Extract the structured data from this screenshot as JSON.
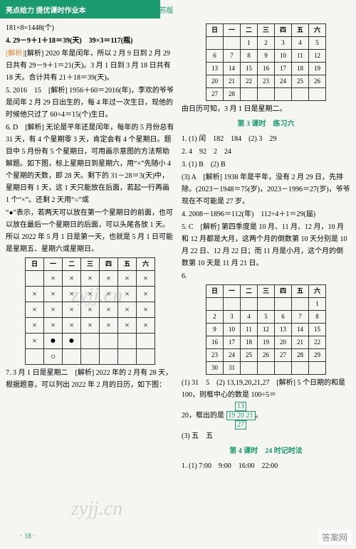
{
  "header": {
    "left": "亮点给力  提优课时作业本",
    "right": "数学三年级  下册  江苏版"
  },
  "left": {
    "p1": "181×8=1448(个)",
    "p2a": "4. 29－9＋1＋18＝39(天)　39×3＝117(瓶)",
    "p2b": "[解析] 2020 年是闰年，所以 2 月 9 日到 2 月 29 日共有 29－9＋1＝21(天)。3 月 1 日到 3 月 18 日共有 18 天。合计共有 21＋18＝39(天)。",
    "p3a": "5. 2016　15　[解析] 1956＋60＝2016(年)，李欢的爷爷是闰年 2 月 29 日出生的，每 4 年过一次生日，现他的时候他只过了 60÷4＝15(个)生日。",
    "p4a": "6. D　[解析] 无论是平年还是闰年，每年的 5 月份总有 31 天，有 4 个星期零 3 天，肯定会有 4 个星期日。题目中 5 月份有 5 个星期日，可用画示意图的方法帮助解题。如下图，标上星期日到星期六，用“×”先随小 4 个星期的天数，即 28 天。剩下的 31－28＝3(天)中，星期日有 1 天，这 1 天只能放在后面，若起一行再画 1 个“×”。还剩 2 天用“○”或",
    "p4b": "“●”表示，若两天可以放在第一个星期日的前面，也可以放在最后一个星期日的后面，可以头尾各放 1 天。所以 2022 年 5 月 1 日是第一天，也就是 5 月 1 日可能是星期五、星期六或星期日。",
    "p5a": "7. 3 月 1 日是星期二　[解析] 2022 年的 2 月有 28 天，根据题意，可以列出 2022 年 2 月的日历，如下图：",
    "markHeaders": [
      "日",
      "一",
      "二",
      "三",
      "四",
      "五",
      "六"
    ],
    "markGrid": [
      [
        "",
        "×",
        "×",
        "×",
        "×",
        "×",
        "×"
      ],
      [
        "×",
        "×",
        "×",
        "×",
        "×",
        "×",
        "×"
      ],
      [
        "×",
        "×",
        "×",
        "×",
        "×",
        "×",
        "×"
      ],
      [
        "×",
        "×",
        "×",
        "×",
        "×",
        "×",
        "×"
      ],
      [
        "×",
        "●",
        "●",
        "",
        "",
        "",
        ""
      ],
      [
        "",
        "○",
        "",
        "",
        "",
        "",
        ""
      ]
    ]
  },
  "right": {
    "calHeaders": [
      "日",
      "一",
      "二",
      "三",
      "四",
      "五",
      "六"
    ],
    "calRows": [
      [
        "",
        "",
        "1",
        "2",
        "3",
        "4",
        "5"
      ],
      [
        "6",
        "7",
        "8",
        "9",
        "10",
        "11",
        "12"
      ],
      [
        "13",
        "14",
        "15",
        "16",
        "17",
        "18",
        "19"
      ],
      [
        "20",
        "21",
        "22",
        "23",
        "24",
        "25",
        "26"
      ],
      [
        "27",
        "28",
        "",
        "",
        "",
        "",
        ""
      ]
    ],
    "calNote": "由日历可知，3 月 1 日是星期二。",
    "sec3": "第 3 课时　练习六",
    "r1": "1. (1) 闰　182　184　(2) 3　29",
    "r2": "2. 4　92　2　24",
    "r3a": "3. (1) B　(2) B",
    "r3b": "(3) A　[解析] 1938 年是平年，没有 2 月 29 日，先排除。(2023－1948＝75(岁)，2023－1996＝27(岁)，爷爷现在不可能是 27 岁。",
    "r4": "4. 2008－1896＝112(年)　112÷4＋1＝29(届)",
    "r5": "5. C　[解析] 第四季度是 10 月、11 月、12 月，10 月和 12 月都是大月，这两个月的倒数第 10 天分别是 10 月 22 日、12 月 22 日；而 11 月是小月，这个月的倒数第 10 天是 11 月 21 日。",
    "r6head": "6.",
    "cal2Rows": [
      [
        "",
        "",
        "",
        "",
        "",
        "",
        "1"
      ],
      [
        "2",
        "3",
        "4",
        "5",
        "6",
        "7",
        "8"
      ],
      [
        "9",
        "10",
        "11",
        "12",
        "13",
        "14",
        "15"
      ],
      [
        "16",
        "17",
        "18",
        "19",
        "20",
        "21",
        "22"
      ],
      [
        "23",
        "24",
        "25",
        "26",
        "27",
        "28",
        "29"
      ],
      [
        "30",
        "31",
        "",
        "",
        "",
        "",
        ""
      ]
    ],
    "r6a": "(1) 31　5　(2) 13,19,20,21,27　[解析] 5 个日期的和是 100，则框中心的数是 100÷5＝",
    "r6b_pre": "20，框出的是",
    "boxTop": "13",
    "boxRow": "19 20 21",
    "boxBot": "27",
    "r6c": "(3) 五　五",
    "sec4": "第 4 课时　24 时记时法",
    "r7": "1. (1) 7:00　9:00　16:00　22:00"
  },
  "page": "· 18 ·",
  "wm": "zyjj.cn",
  "wm3": "答案网",
  "reveal": ""
}
